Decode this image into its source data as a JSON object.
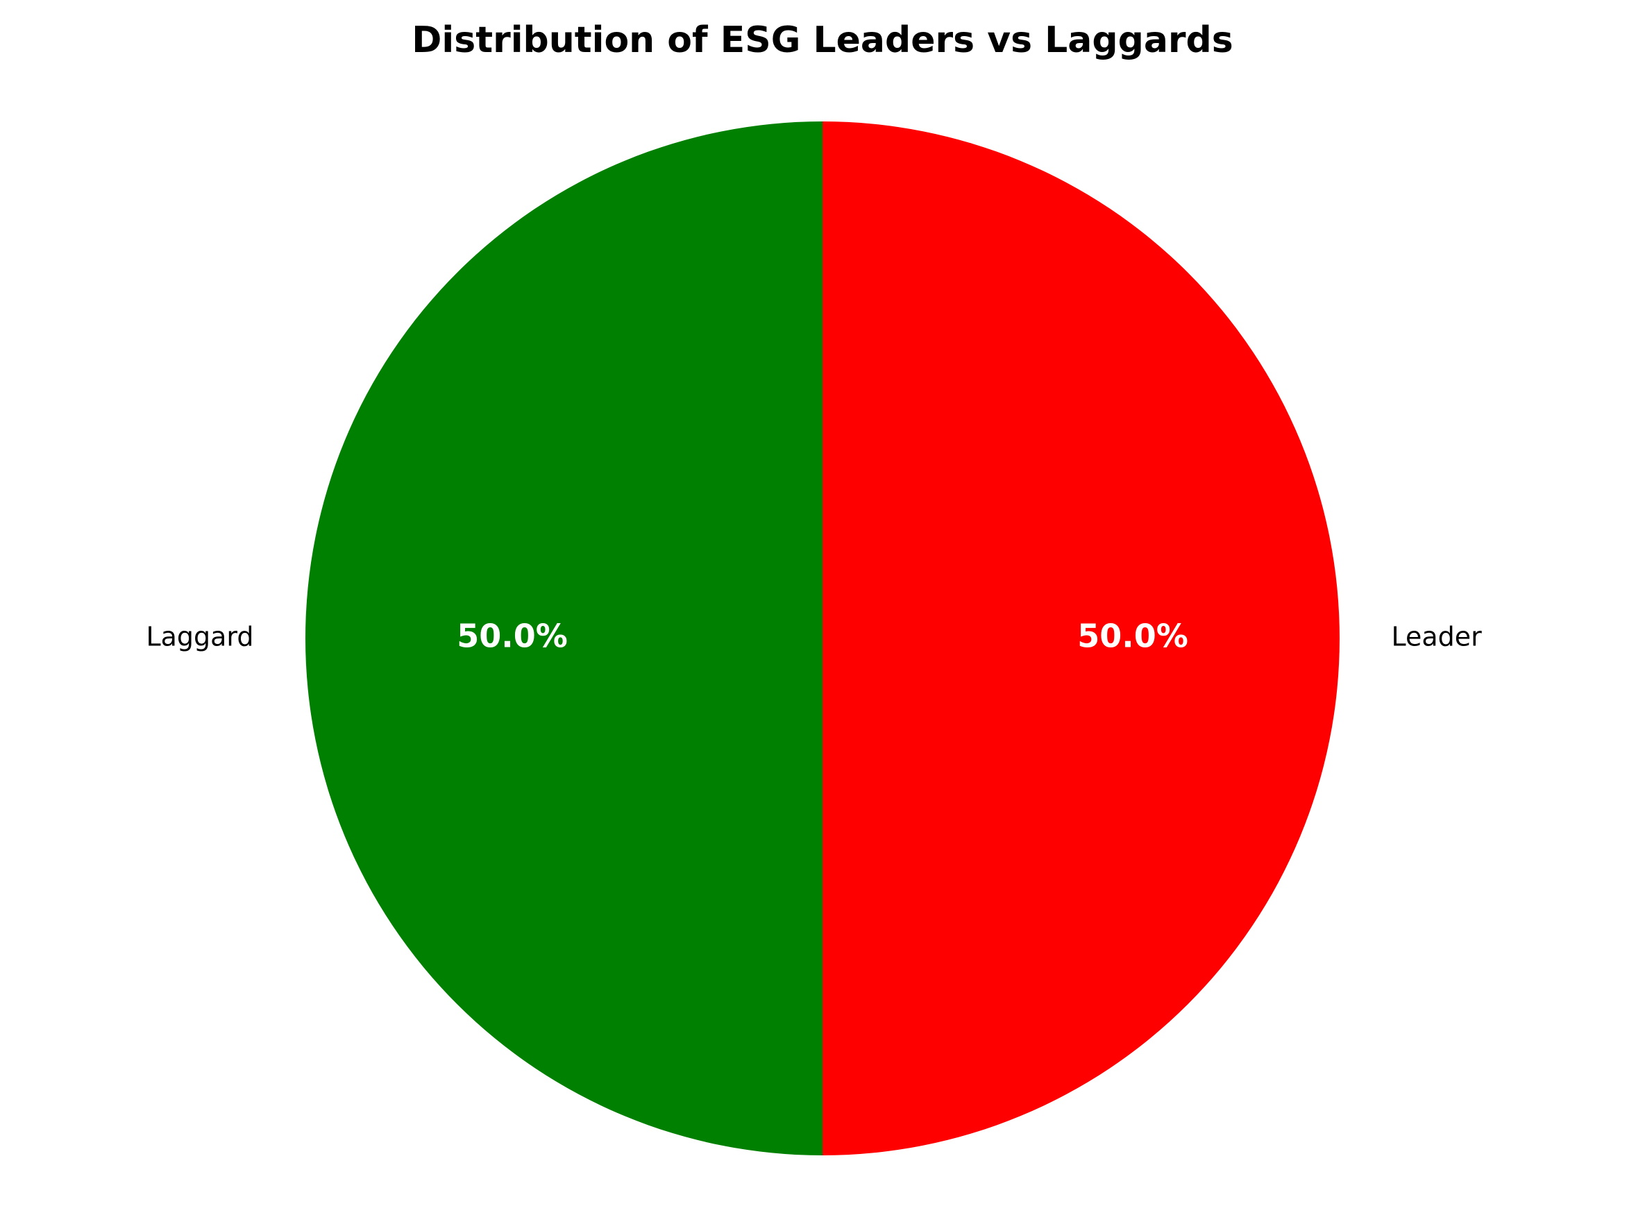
{
  "chart_data": {
    "type": "pie",
    "title": "Distribution of ESG Leaders vs Laggards",
    "slices": [
      {
        "label": "Leader",
        "value": 50.0,
        "pct_label": "50.0%",
        "color": "#ff0000"
      },
      {
        "label": "Laggard",
        "value": 50.0,
        "pct_label": "50.0%",
        "color": "#008000"
      }
    ],
    "start_angle": "top",
    "direction": "clockwise"
  }
}
